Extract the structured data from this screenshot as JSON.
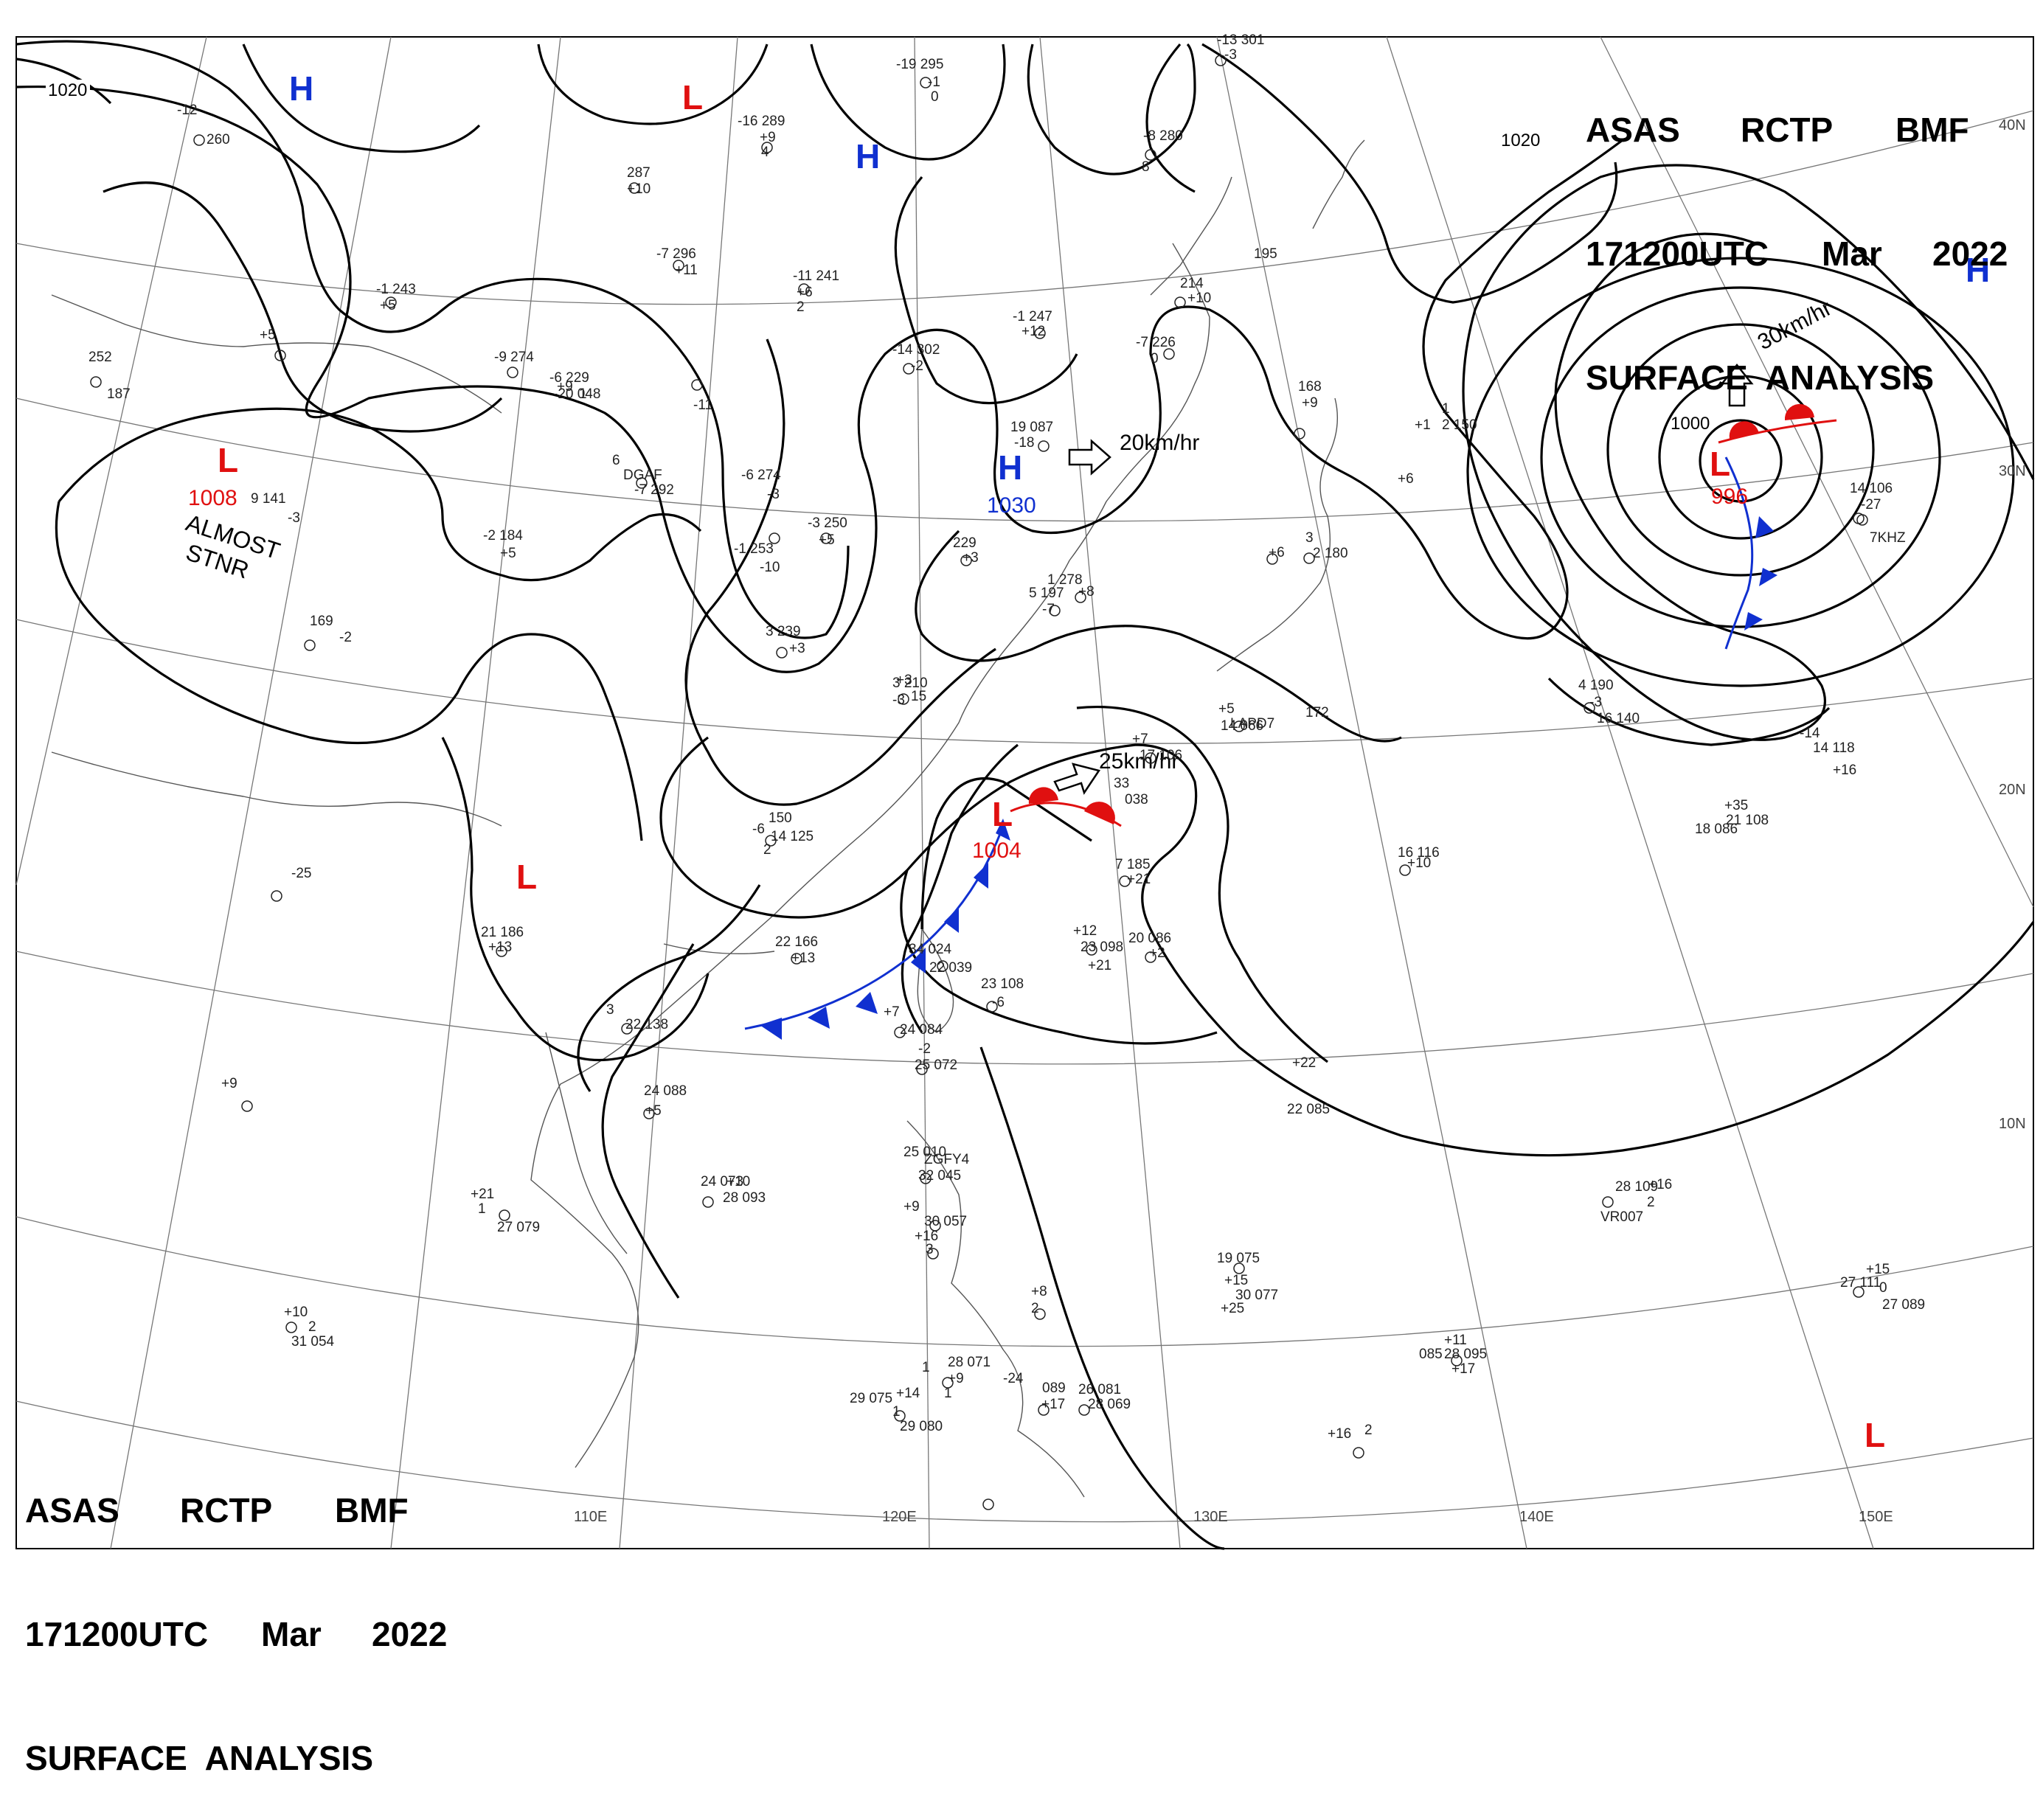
{
  "header": {
    "agency": "ASAS",
    "station": "RCTP",
    "office": "BMF",
    "time": "171200UTC",
    "month": "Mar",
    "year": "2022",
    "product": "SURFACE  ANALYSIS"
  },
  "longitudes": [
    "110E",
    "120E",
    "130E",
    "140E",
    "150E"
  ],
  "latitudes": [
    "40N",
    "30N",
    "20N",
    "10N"
  ],
  "isobar_labels": [
    "1020",
    "1020",
    "1000"
  ],
  "pressure_systems": [
    {
      "type": "H",
      "color": "#1030d0"
    },
    {
      "type": "H",
      "color": "#1030d0"
    },
    {
      "type": "H",
      "color": "#1030d0",
      "value": "1030"
    },
    {
      "type": "H",
      "color": "#1030d0"
    },
    {
      "type": "L",
      "color": "#e01010"
    },
    {
      "type": "L",
      "color": "#e01010",
      "value": "1008"
    },
    {
      "type": "L",
      "color": "#e01010"
    },
    {
      "type": "L",
      "color": "#e01010",
      "value": "1004"
    },
    {
      "type": "L",
      "color": "#e01010",
      "value": "996"
    },
    {
      "type": "L",
      "color": "#e01010"
    }
  ],
  "annotations": {
    "stationary_note_1": "ALMOST",
    "stationary_note_2": "STNR"
  },
  "movements": [
    {
      "text": "20km/hr"
    },
    {
      "text": "25km/hr"
    },
    {
      "text": "30km/hr"
    }
  ],
  "station_reports": [
    "-19  295",
    "-1",
    "0",
    "-13  301",
    "-3",
    "-16  289",
    "+9",
    "4",
    "287",
    "+10",
    "-8  280",
    "8",
    "-12",
    "260",
    "-7  296",
    "+11",
    "-11  241",
    "+6",
    "2",
    "195",
    "-1  243",
    "+5",
    "214",
    "+10",
    "-1  247",
    "+12",
    "-14  302",
    "-2",
    "-7  226",
    "0",
    "-9  274",
    "-6  229",
    "+9",
    "1",
    "-20  048",
    "-11",
    "252",
    "187",
    "+5",
    "168",
    "+9",
    "1",
    "2  150",
    "+1",
    "6",
    "DGAF",
    "-7  292",
    "+6",
    "19  087",
    "-18",
    "9  141",
    "-3",
    "-2  184",
    "+5",
    "-6  274",
    "-3",
    "-3  250",
    "+5",
    "229",
    "+3",
    "3",
    "2  180",
    "+6",
    "-1  253",
    "-10",
    "1  278",
    "+8",
    "5  197",
    "-7",
    "169",
    "-2",
    "3  239",
    "+3",
    "3  210",
    "-3",
    "14  106",
    "-27",
    "7KHZ",
    "4  190",
    "-3",
    "16  140",
    "+5",
    "LAPD7",
    "172",
    "+3",
    "15",
    "14  066",
    "-14",
    "14  118",
    "+7",
    "17  106",
    "+16",
    "33",
    "038",
    "150",
    "14  125",
    "-6",
    "2",
    "7  185",
    "+21",
    "16  116",
    "+10",
    "18  086",
    "+35",
    "21  108",
    "-25",
    "21  186",
    "+13",
    "22  166",
    "+13",
    "34  024",
    "22  039",
    "+12",
    "23  098",
    "+21",
    "20  086",
    "+2",
    "23  108",
    "-6",
    "3",
    "22  138",
    "+7",
    "24  084",
    "-2",
    "25  072",
    "+22",
    "22  085",
    "+9",
    "24  088",
    "+5",
    "25  010",
    "ZGFY4",
    "32  045",
    "24  073",
    "+10",
    "28  093",
    "+21",
    "1",
    "27  079",
    "+9",
    "30  057",
    "+16",
    "3",
    "19  075",
    "+15",
    "30  077",
    "+25",
    "28  109",
    "+16",
    "2",
    "VR007",
    "27  111",
    "+15",
    "0",
    "27  089",
    "+10",
    "2",
    "31  054",
    "+8",
    "2",
    "085",
    "+11",
    "28  095",
    "+17",
    "1",
    "28  071",
    "+9",
    "1",
    "29  075",
    "+14",
    "1",
    "29  080",
    "-24",
    "089",
    "+17",
    "26  081",
    "28  069",
    "+16",
    "2"
  ],
  "colors": {
    "isobar": "#000000",
    "coast": "#555555",
    "grid": "#777777",
    "high": "#1030d0",
    "low": "#e01010",
    "cold_front": "#1030d0",
    "warm_front": "#e01010"
  }
}
